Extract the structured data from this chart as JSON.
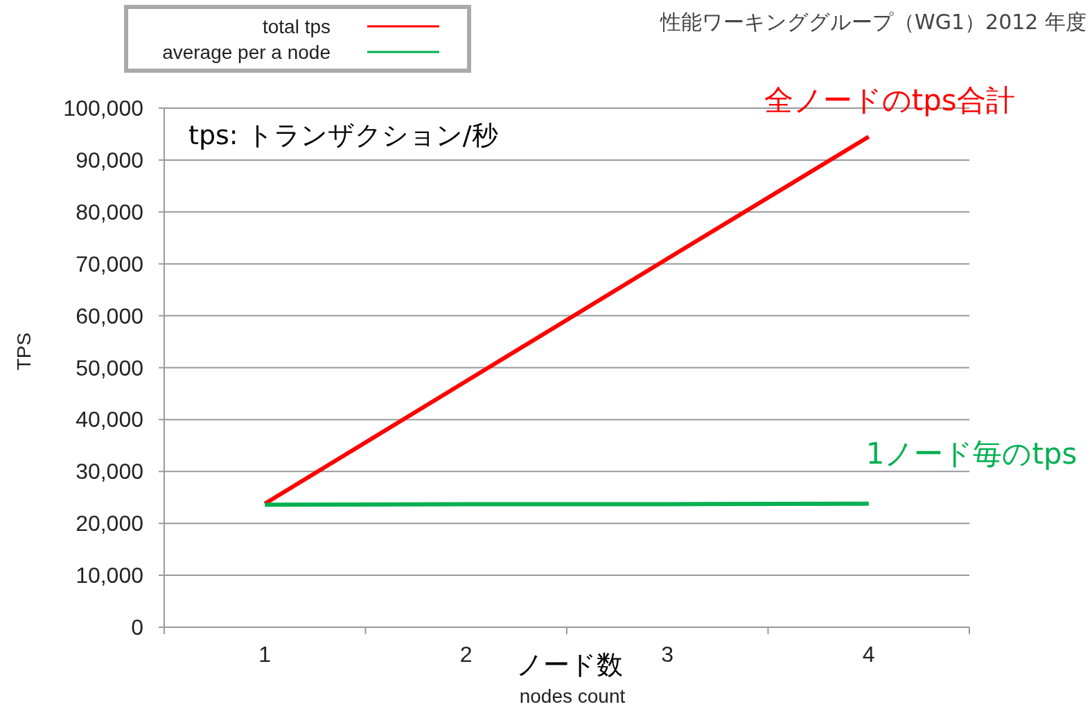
{
  "chart_data": {
    "type": "line",
    "title": "性能ワーキンググループ（WG1）2012 年度",
    "xlabel": "ノード数",
    "ylabel": "TPS",
    "categories": [
      "1",
      "2",
      "3",
      "4"
    ],
    "series": [
      {
        "name": "total tps",
        "color": "#ff0000",
        "values": [
          23800,
          47400,
          71000,
          94500
        ]
      },
      {
        "name": "average per a node",
        "color": "#00b050",
        "values": [
          23600,
          23700,
          23700,
          23800
        ]
      }
    ],
    "ylim": [
      0,
      100000
    ],
    "yticks": [
      {
        "value": 0,
        "label": "0"
      },
      {
        "value": 10000,
        "label": "10,000"
      },
      {
        "value": 20000,
        "label": "20,000"
      },
      {
        "value": 30000,
        "label": "30,000"
      },
      {
        "value": 40000,
        "label": "40,000"
      },
      {
        "value": 50000,
        "label": "50,000"
      },
      {
        "value": 60000,
        "label": "60,000"
      },
      {
        "value": 70000,
        "label": "70,000"
      },
      {
        "value": 80000,
        "label": "80,000"
      },
      {
        "value": 90000,
        "label": "90,000"
      },
      {
        "value": 100000,
        "label": "100,000"
      }
    ],
    "grid": "y",
    "legend": "top left",
    "marker": "none",
    "line_style": "solid",
    "annotations": [
      "nodes count",
      "tps: トランザクション/秒",
      {
        "text": "全ノードのtps合計",
        "x": "4",
        "y": 94500
      },
      {
        "text": "1ノード毎のtps",
        "x": "4",
        "y": 23800
      }
    ]
  }
}
